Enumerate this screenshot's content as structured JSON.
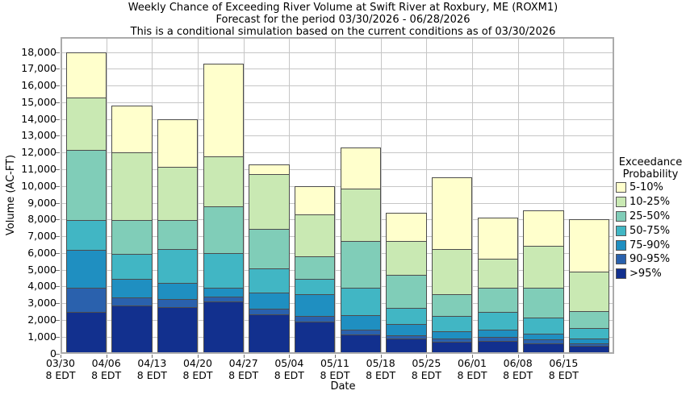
{
  "title_lines": {
    "line1": "Weekly Chance of Exceeding River Volume at Swift River at Roxbury, ME (ROXM1)",
    "line2": "Forecast for the period 03/30/2026 - 06/28/2026",
    "line3": "This is a conditional simulation based on the current conditions as of 03/30/2026"
  },
  "chart_data": {
    "type": "bar",
    "stacked": true,
    "title": "Weekly Chance of Exceeding River Volume at Swift River at Roxbury, ME (ROXM1)",
    "xlabel": "Date",
    "ylabel": "Volume (AC-FT)",
    "ylim": [
      0,
      18900
    ],
    "ytick_step": 1000,
    "ytick_label_max": 18000,
    "grid": true,
    "categories": [
      "03/30",
      "04/06",
      "04/13",
      "04/20",
      "04/27",
      "05/04",
      "05/11",
      "05/18",
      "05/25",
      "06/01",
      "06/08",
      "06/15"
    ],
    "category_sub_label": "8 EDT",
    "series": [
      {
        "name": ">95%",
        "color": "#12308E",
        "values": [
          2500,
          2850,
          2750,
          3100,
          2350,
          1900,
          1150,
          900,
          700,
          750,
          600,
          450
        ]
      },
      {
        "name": "90-95%",
        "color": "#2A61AD",
        "values": [
          1400,
          500,
          500,
          300,
          300,
          350,
          250,
          200,
          200,
          250,
          250,
          150
        ]
      },
      {
        "name": "75-90%",
        "color": "#1F8FC1",
        "values": [
          2300,
          1100,
          950,
          500,
          1000,
          1300,
          900,
          650,
          400,
          400,
          350,
          300
        ]
      },
      {
        "name": "50-75%",
        "color": "#41B6C4",
        "values": [
          1750,
          1500,
          2050,
          2100,
          1450,
          900,
          1600,
          950,
          950,
          1100,
          950,
          600
        ]
      },
      {
        "name": "25-50%",
        "color": "#80CDB8",
        "values": [
          4200,
          2000,
          1700,
          2800,
          2350,
          1350,
          2800,
          2000,
          1300,
          1400,
          1750,
          1050
        ]
      },
      {
        "name": "10-25%",
        "color": "#C9E9B3",
        "values": [
          3150,
          4050,
          3200,
          2950,
          3250,
          2500,
          3150,
          2000,
          2700,
          1750,
          2550,
          2350
        ]
      },
      {
        "name": "5-10%",
        "color": "#FFFFCC",
        "values": [
          2700,
          2800,
          2850,
          5550,
          600,
          1700,
          2450,
          1700,
          4250,
          2450,
          2100,
          3100
        ]
      }
    ],
    "legend": {
      "title_line1": "Exceedance",
      "title_line2": "Probability",
      "position": "right",
      "items_top_to_bottom": [
        "5-10%",
        "10-25%",
        "25-50%",
        "50-75%",
        "75-90%",
        "90-95%",
        ">95%"
      ]
    }
  }
}
